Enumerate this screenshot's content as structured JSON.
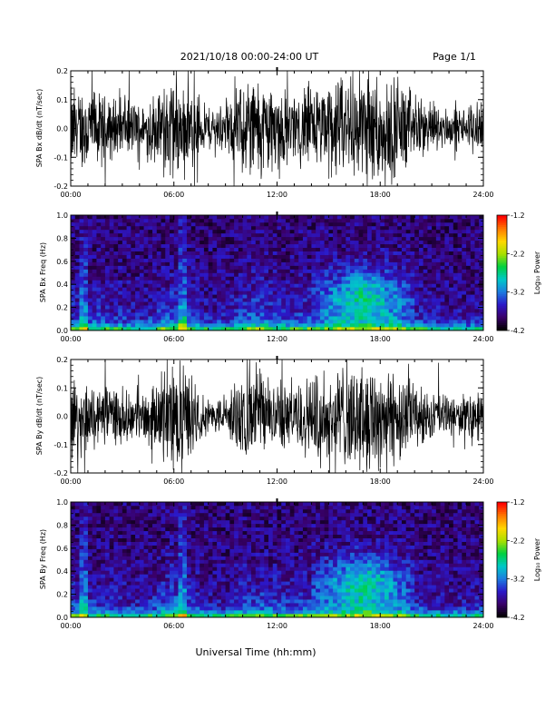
{
  "header": {
    "title": "2021/10/18  00:00-24:00 UT",
    "page": "Page 1/1"
  },
  "footer": {
    "xlabel": "Universal Time (hh:mm)"
  },
  "x_ticks": [
    "00:00",
    "06:00",
    "12:00",
    "18:00",
    "24:00"
  ],
  "colorbar": {
    "label": "Log₁₀ Power",
    "tick_labels": [
      "-1.2",
      "-2.2",
      "-3.2",
      "-4.2"
    ],
    "range": [
      -4.2,
      -1.2
    ],
    "colors": [
      "#000000",
      "#3a006a",
      "#2b18c8",
      "#1c7ce0",
      "#00c8c8",
      "#00d040",
      "#a8e000",
      "#ffd800",
      "#ff7a00",
      "#ff0000"
    ]
  },
  "chart_data": [
    {
      "type": "line",
      "ylabel": "SPA Bx dB/dt (nT/sec)",
      "xlim": [
        0,
        24
      ],
      "ylim": [
        -0.2,
        0.2
      ],
      "y_ticks": [
        "0.2",
        "0.1",
        "0.0",
        "-0.1",
        "-0.2"
      ],
      "envelope": {
        "hours": [
          0,
          1,
          2,
          3,
          4,
          5,
          6,
          7,
          8,
          9,
          10,
          11,
          12,
          13,
          14,
          15,
          16,
          17,
          18,
          19,
          20,
          21,
          22,
          23,
          24
        ],
        "amplitude": [
          0.15,
          0.13,
          0.11,
          0.1,
          0.08,
          0.12,
          0.2,
          0.14,
          0.07,
          0.08,
          0.17,
          0.18,
          0.14,
          0.12,
          0.15,
          0.16,
          0.18,
          0.2,
          0.2,
          0.17,
          0.12,
          0.08,
          0.07,
          0.06,
          0.09
        ]
      }
    },
    {
      "type": "heatmap",
      "ylabel": "SPA Bx Freq (Hz)",
      "xlim": [
        0,
        24
      ],
      "ylim": [
        0,
        1
      ],
      "y_ticks": [
        "1.0",
        "0.8",
        "0.6",
        "0.4",
        "0.2",
        "0.0"
      ]
    },
    {
      "type": "line",
      "ylabel": "SPA By dB/dt (nT/sec)",
      "xlim": [
        0,
        24
      ],
      "ylim": [
        -0.2,
        0.2
      ],
      "y_ticks": [
        "0.2",
        "0.1",
        "0.0",
        "-0.1",
        "-0.2"
      ],
      "envelope": {
        "hours": [
          0,
          1,
          2,
          3,
          4,
          5,
          6,
          7,
          8,
          9,
          10,
          11,
          12,
          13,
          14,
          15,
          16,
          17,
          18,
          19,
          20,
          21,
          22,
          23,
          24
        ],
        "amplitude": [
          0.16,
          0.12,
          0.1,
          0.09,
          0.07,
          0.12,
          0.2,
          0.13,
          0.06,
          0.07,
          0.14,
          0.15,
          0.12,
          0.12,
          0.14,
          0.16,
          0.18,
          0.2,
          0.2,
          0.16,
          0.11,
          0.08,
          0.07,
          0.06,
          0.09
        ]
      }
    },
    {
      "type": "heatmap",
      "ylabel": "SPA By Freq (Hz)",
      "xlim": [
        0,
        24
      ],
      "ylim": [
        0,
        1
      ],
      "y_ticks": [
        "1.0",
        "0.8",
        "0.6",
        "0.4",
        "0.2",
        "0.0"
      ]
    }
  ]
}
